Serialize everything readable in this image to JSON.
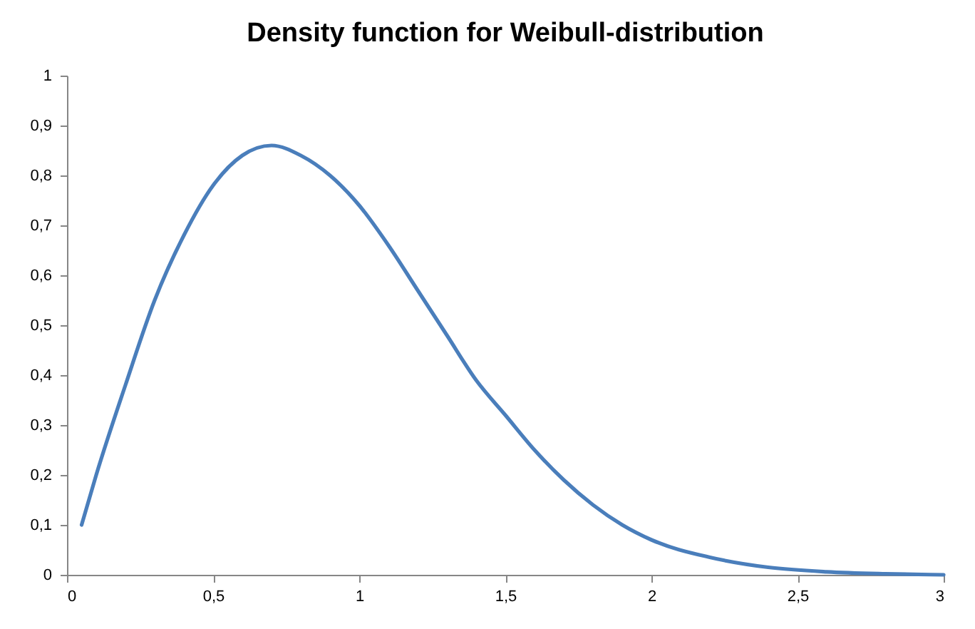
{
  "chart_data": {
    "type": "line",
    "title": "Density function for Weibull-distribution",
    "x": [
      0.05,
      0.1,
      0.2,
      0.3,
      0.4,
      0.5,
      0.6,
      0.7,
      0.8,
      0.9,
      1.0,
      1.1,
      1.2,
      1.3,
      1.4,
      1.5,
      1.6,
      1.7,
      1.8,
      1.9,
      2.0,
      2.2,
      2.4,
      2.6,
      2.8,
      3.0
    ],
    "series": [
      {
        "color": "#4a7ebb",
        "values": [
          0.1,
          0.2,
          0.38,
          0.55,
          0.68,
          0.78,
          0.84,
          0.86,
          0.84,
          0.8,
          0.74,
          0.66,
          0.57,
          0.48,
          0.39,
          0.32,
          0.25,
          0.19,
          0.14,
          0.1,
          0.07,
          0.035,
          0.015,
          0.006,
          0.002,
          0
        ]
      }
    ],
    "xlim": [
      0,
      3
    ],
    "xticks": [
      0,
      {
        "value": 0.5,
        "label": "0,5"
      },
      1,
      {
        "value": 1.5,
        "label": "1,5"
      },
      2,
      {
        "value": 2.5,
        "label": "2,5"
      },
      3
    ],
    "ylim": [
      0,
      1
    ],
    "yticks": [
      0,
      {
        "value": 0.1,
        "label": "0,1"
      },
      {
        "value": 0.2,
        "label": "0,2"
      },
      {
        "value": 0.3,
        "label": "0,3"
      },
      {
        "value": 0.4,
        "label": "0,4"
      },
      {
        "value": 0.5,
        "label": "0,5"
      },
      {
        "value": 0.6,
        "label": "0,6"
      },
      {
        "value": 0.7,
        "label": "0,7"
      },
      {
        "value": 0.8,
        "label": "0,8"
      },
      {
        "value": 0.9,
        "label": "0,9"
      },
      1
    ],
    "grid": false,
    "marker": "none",
    "line_style": "solid"
  }
}
